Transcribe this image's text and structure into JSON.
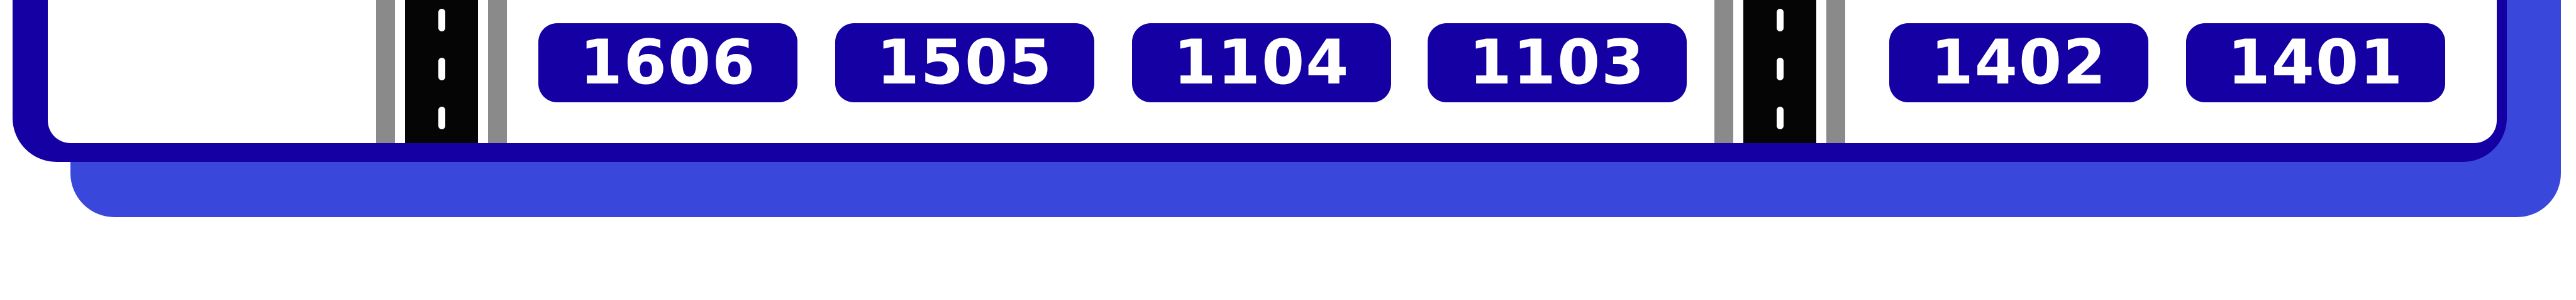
{
  "sign": {
    "colors": {
      "frame": "#1500a3",
      "shadow": "#3a47db",
      "background": "#ffffff",
      "badge": "#1500a3",
      "badge_text": "#ffffff",
      "road": "#050505",
      "shoulder": "#8a8a8a",
      "lane_marking": "#ffffff"
    },
    "routes_left": [
      {
        "number": "1606"
      },
      {
        "number": "1505"
      },
      {
        "number": "1104"
      },
      {
        "number": "1103"
      }
    ],
    "routes_right": [
      {
        "number": "1402"
      },
      {
        "number": "1401"
      }
    ],
    "roads": [
      {
        "icon": "road-icon"
      },
      {
        "icon": "road-icon"
      }
    ]
  }
}
